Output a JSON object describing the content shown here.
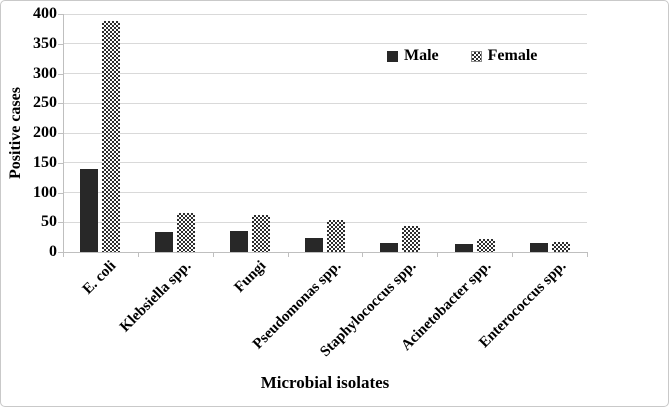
{
  "chart_data": {
    "type": "bar",
    "title": "",
    "xlabel": "Microbial isolates",
    "ylabel": "Positive cases",
    "categories": [
      "E. coli",
      "Klebsiella spp.",
      "Fungi",
      "Pseudomonas spp.",
      "Staphylococcus spp.",
      "Acinetobacter spp.",
      "Enterococcus spp."
    ],
    "series": [
      {
        "name": "Male",
        "pattern": "solid",
        "color": "#282828",
        "values": [
          140,
          33,
          35,
          23,
          15,
          14,
          15
        ]
      },
      {
        "name": "Female",
        "pattern": "checker",
        "color": "#2e2e2e",
        "values": [
          388,
          65,
          62,
          53,
          43,
          22,
          17
        ]
      }
    ],
    "ylim": [
      0,
      400
    ],
    "yticks": [
      0,
      50,
      100,
      150,
      200,
      250,
      300,
      350,
      400
    ],
    "grid": true,
    "legend_position": "top-right-inside",
    "gridline_color": "#d9d9d9",
    "axis_color": "#bfbfbf",
    "text_color": "#000000"
  }
}
